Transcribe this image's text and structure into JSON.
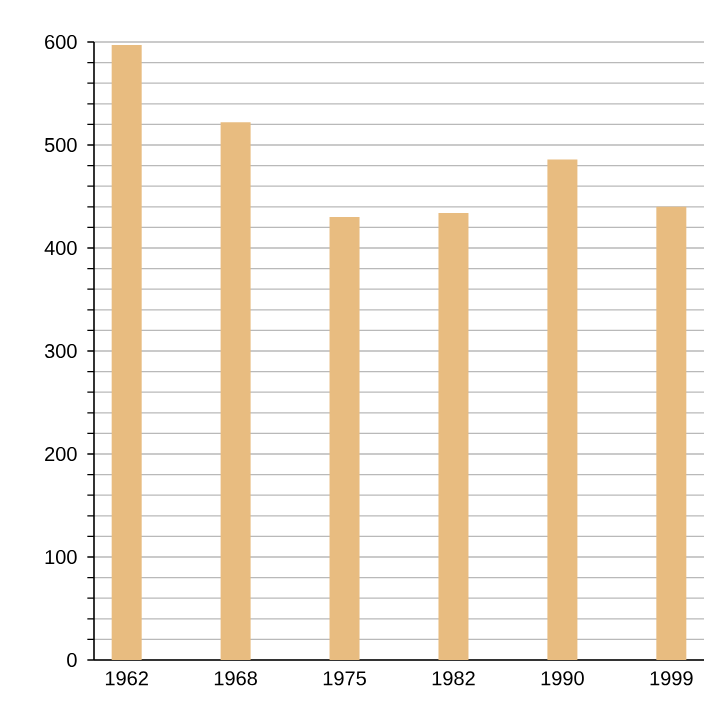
{
  "chart_data": {
    "type": "bar",
    "categories": [
      "1962",
      "1968",
      "1975",
      "1982",
      "1990",
      "1999"
    ],
    "values": [
      597,
      522,
      430,
      434,
      486,
      440
    ],
    "color": "#e8bc80",
    "ylim": [
      0,
      600
    ],
    "yticks": [
      0,
      {
        "value": 20,
        "label": null
      },
      {
        "value": 40,
        "label": null
      },
      {
        "value": 60,
        "label": null
      },
      {
        "value": 80,
        "label": null
      },
      100,
      {
        "value": 120,
        "label": null
      },
      {
        "value": 140,
        "label": null
      },
      {
        "value": 160,
        "label": null
      },
      {
        "value": 180,
        "label": null
      },
      200,
      {
        "value": 220,
        "label": null
      },
      {
        "value": 240,
        "label": null
      },
      {
        "value": 260,
        "label": null
      },
      {
        "value": 280,
        "label": null
      },
      300,
      {
        "value": 320,
        "label": null
      },
      {
        "value": 340,
        "label": null
      },
      {
        "value": 360,
        "label": null
      },
      {
        "value": 380,
        "label": null
      },
      400,
      {
        "value": 420,
        "label": null
      },
      {
        "value": 440,
        "label": null
      },
      {
        "value": 460,
        "label": null
      },
      {
        "value": 480,
        "label": null
      },
      500,
      {
        "value": 520,
        "label": null
      },
      {
        "value": 540,
        "label": null
      },
      {
        "value": 560,
        "label": null
      },
      {
        "value": 580,
        "label": null
      },
      600
    ],
    "grid": "y"
  }
}
